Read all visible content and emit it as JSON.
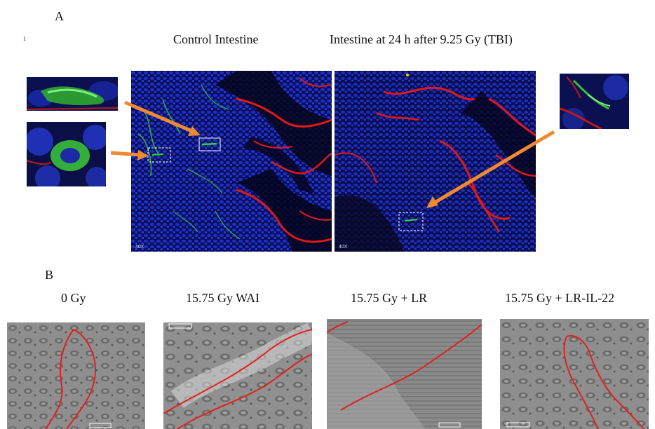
{
  "figure": {
    "panel_a_letter": "A",
    "panel_b_letter": "B",
    "panel_a": {
      "stray_mark": "1",
      "titles": {
        "control": "Control Intestine",
        "irradiated": "Intestine at 24 h after 9.25 Gy (TBI)"
      },
      "magnification": {
        "left": "40X",
        "right": "40X"
      }
    },
    "panel_b": {
      "labels": [
        "0 Gy",
        "15.75 Gy WAI",
        "15.75 Gy + LR",
        "15.75 Gy + LR-IL-22"
      ]
    },
    "colors": {
      "arrow": "#f08a30",
      "nuclei_stain": "#1a2fd0",
      "membrane_stain": "#e01818",
      "marker_stain": "#35d035",
      "outline": "#e02020"
    }
  }
}
